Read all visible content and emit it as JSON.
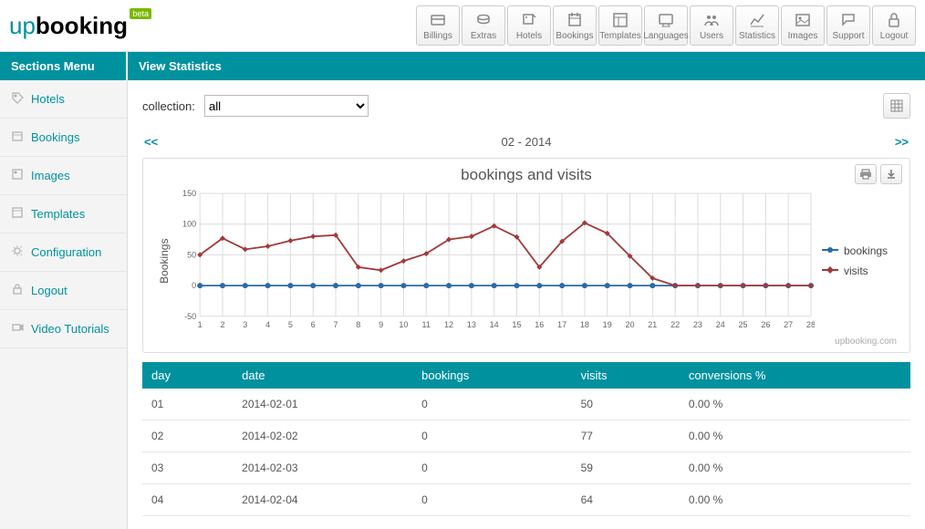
{
  "brand": {
    "prefix": "up",
    "suffix": "booking",
    "badge": "beta"
  },
  "toolbar": [
    {
      "name": "billings",
      "label": "Billings"
    },
    {
      "name": "extras",
      "label": "Extras"
    },
    {
      "name": "hotels",
      "label": "Hotels"
    },
    {
      "name": "bookings",
      "label": "Bookings"
    },
    {
      "name": "templates",
      "label": "Templates"
    },
    {
      "name": "languages",
      "label": "Languages"
    },
    {
      "name": "users",
      "label": "Users"
    },
    {
      "name": "statistics",
      "label": "Statistics"
    },
    {
      "name": "images",
      "label": "Images"
    },
    {
      "name": "support",
      "label": "Support"
    },
    {
      "name": "logout",
      "label": "Logout"
    }
  ],
  "titles": {
    "sections": "Sections Menu",
    "view": "View Statistics"
  },
  "sidebar": [
    {
      "name": "hotels",
      "label": "Hotels",
      "icon": "tag"
    },
    {
      "name": "bookings",
      "label": "Bookings",
      "icon": "calendar"
    },
    {
      "name": "images",
      "label": "Images",
      "icon": "image"
    },
    {
      "name": "templates",
      "label": "Templates",
      "icon": "layout"
    },
    {
      "name": "configuration",
      "label": "Configuration",
      "icon": "gear"
    },
    {
      "name": "logout",
      "label": "Logout",
      "icon": "lock"
    },
    {
      "name": "video-tutorials",
      "label": "Video Tutorials",
      "icon": "video"
    }
  ],
  "filter": {
    "label": "collection:",
    "selected": "all"
  },
  "monthNav": {
    "prev": "<<",
    "label": "02 - 2014",
    "next": ">>"
  },
  "chart": {
    "title": "bookings and visits",
    "ylabel": "Bookings",
    "x_categories": [
      1,
      2,
      3,
      4,
      5,
      6,
      7,
      8,
      9,
      10,
      11,
      12,
      13,
      14,
      15,
      16,
      17,
      18,
      19,
      20,
      21,
      22,
      23,
      24,
      25,
      26,
      27,
      28
    ],
    "y_ticks": [
      -50,
      0,
      50,
      100,
      150
    ],
    "ylim": [
      -50,
      150
    ],
    "series": [
      {
        "name": "bookings",
        "label": "bookings",
        "color": "#2b6aa8",
        "marker": "circle",
        "values": [
          0,
          0,
          0,
          0,
          0,
          0,
          0,
          0,
          0,
          0,
          0,
          0,
          0,
          0,
          0,
          0,
          0,
          0,
          0,
          0,
          0,
          0,
          0,
          0,
          0,
          0,
          0,
          0
        ]
      },
      {
        "name": "visits",
        "label": "visits",
        "color": "#a13a3a",
        "marker": "diamond",
        "values": [
          50,
          77,
          59,
          64,
          73,
          80,
          82,
          30,
          25,
          40,
          52,
          75,
          80,
          97,
          79,
          30,
          72,
          102,
          85,
          48,
          12,
          0,
          0,
          0,
          0,
          0,
          0,
          0
        ]
      }
    ],
    "grid_color": "#dcdcdc",
    "axis_color": "#999",
    "background": "#ffffff",
    "watermark": "upbooking.com"
  },
  "table": {
    "columns": [
      "day",
      "date",
      "bookings",
      "visits",
      "conversions %"
    ],
    "rows": [
      [
        "01",
        "2014-02-01",
        "0",
        "50",
        "0.00 %"
      ],
      [
        "02",
        "2014-02-02",
        "0",
        "77",
        "0.00 %"
      ],
      [
        "03",
        "2014-02-03",
        "0",
        "59",
        "0.00 %"
      ],
      [
        "04",
        "2014-02-04",
        "0",
        "64",
        "0.00 %"
      ]
    ]
  },
  "colors": {
    "teal": "#00919f"
  }
}
